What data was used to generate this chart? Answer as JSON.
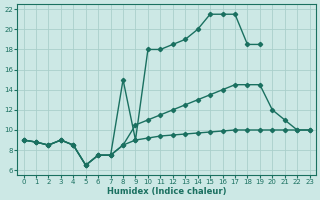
{
  "xlabel": "Humidex (Indice chaleur)",
  "bg_color": "#cce8e5",
  "grid_color": "#aacfcb",
  "line_color": "#1a7060",
  "xlim": [
    -0.5,
    23.5
  ],
  "ylim": [
    5.5,
    22.5
  ],
  "xticks": [
    0,
    1,
    2,
    3,
    4,
    5,
    6,
    7,
    8,
    9,
    10,
    11,
    12,
    13,
    14,
    15,
    16,
    17,
    18,
    19,
    20,
    21,
    22,
    23
  ],
  "yticks": [
    6,
    8,
    10,
    12,
    14,
    16,
    18,
    20,
    22
  ],
  "series": [
    {
      "x": [
        0,
        1,
        2,
        3,
        4,
        5,
        6,
        7,
        8,
        9,
        10,
        11,
        12,
        13,
        14,
        15,
        16,
        17,
        18,
        19,
        20
      ],
      "y": [
        9,
        8.8,
        8.5,
        9,
        8.5,
        6.5,
        7.5,
        7.5,
        15,
        9,
        18,
        18,
        18.5,
        19,
        20,
        21.5,
        21.5,
        21.5,
        18.5,
        18.5,
        null
      ]
    },
    {
      "x": [
        0,
        1,
        2,
        3,
        4,
        5,
        6,
        7,
        8,
        9,
        10,
        11,
        12,
        13,
        14,
        15,
        16,
        17,
        18,
        19,
        20,
        21,
        22,
        23
      ],
      "y": [
        9,
        8.8,
        8.5,
        9,
        8.5,
        6.5,
        7.5,
        7.5,
        8.5,
        10.5,
        11,
        11.5,
        12,
        12.5,
        13,
        13.5,
        14,
        14.5,
        14.5,
        14.5,
        12,
        11,
        10,
        10
      ]
    },
    {
      "x": [
        0,
        1,
        2,
        3,
        4,
        5,
        6,
        7,
        8,
        9,
        10,
        11,
        12,
        13,
        14,
        15,
        16,
        17,
        18,
        19,
        20,
        21,
        22,
        23
      ],
      "y": [
        9,
        8.8,
        8.5,
        9,
        8.5,
        6.5,
        7.5,
        7.5,
        8.5,
        9,
        9.2,
        9.4,
        9.5,
        9.6,
        9.7,
        9.8,
        9.9,
        10,
        10,
        10,
        10,
        10,
        10,
        10
      ]
    }
  ]
}
